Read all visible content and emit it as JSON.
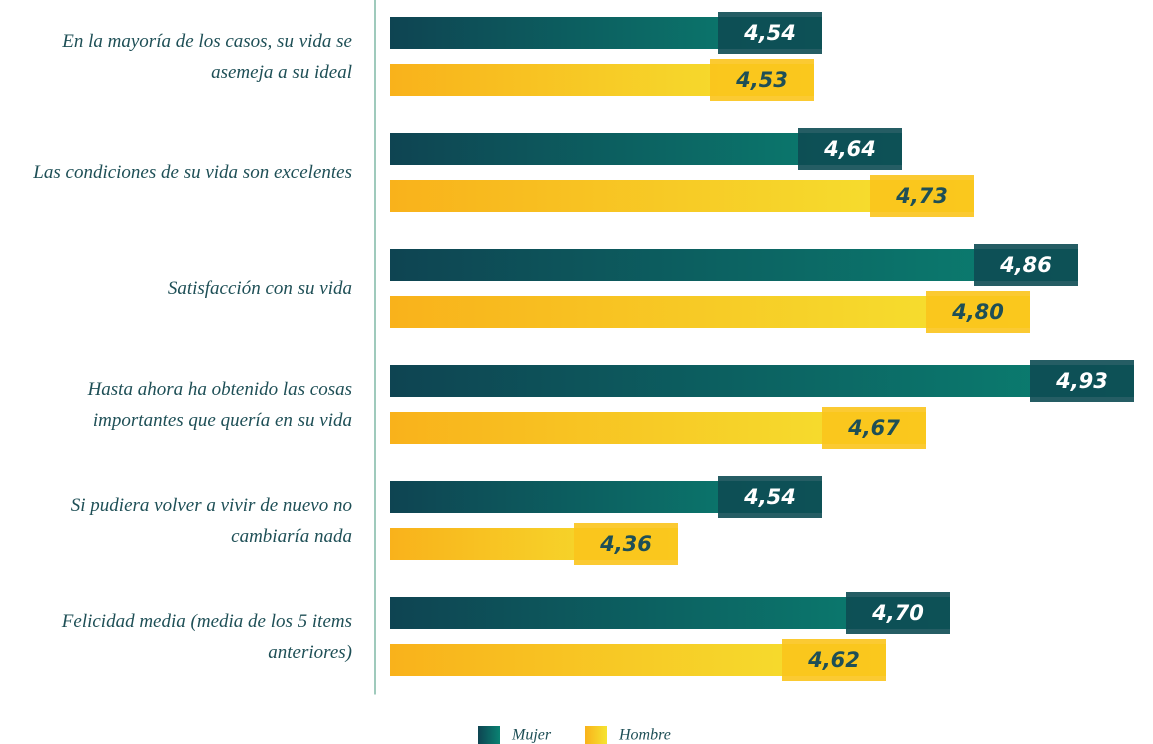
{
  "chart_data": {
    "type": "barh",
    "categories": [
      "En la mayoría de los casos, su vida se asemeja a su ideal",
      "Las condiciones de su vida son excelentes",
      "Satisfacción con su vida",
      "Hasta ahora ha obtenido las cosas importantes que quería en su vida",
      "Si pudiera volver a vivir de nuevo no cambiaría nada",
      "Felicidad media (media de los 5 items anteriores)"
    ],
    "series": [
      {
        "name": "Mujer",
        "color": "#0a6f6a",
        "values": [
          4.54,
          4.64,
          4.86,
          4.93,
          4.54,
          4.7
        ],
        "value_labels": [
          "4,54",
          "4,64",
          "4,86",
          "4,93",
          "4,54",
          "4,70"
        ]
      },
      {
        "name": "Hombre",
        "color": "#f8c620",
        "values": [
          4.53,
          4.73,
          4.8,
          4.67,
          4.36,
          4.62
        ],
        "value_labels": [
          "4,53",
          "4,73",
          "4,80",
          "4,67",
          "4,36",
          "4,62"
        ]
      }
    ],
    "xlim": [
      4,
      4.95
    ]
  }
}
